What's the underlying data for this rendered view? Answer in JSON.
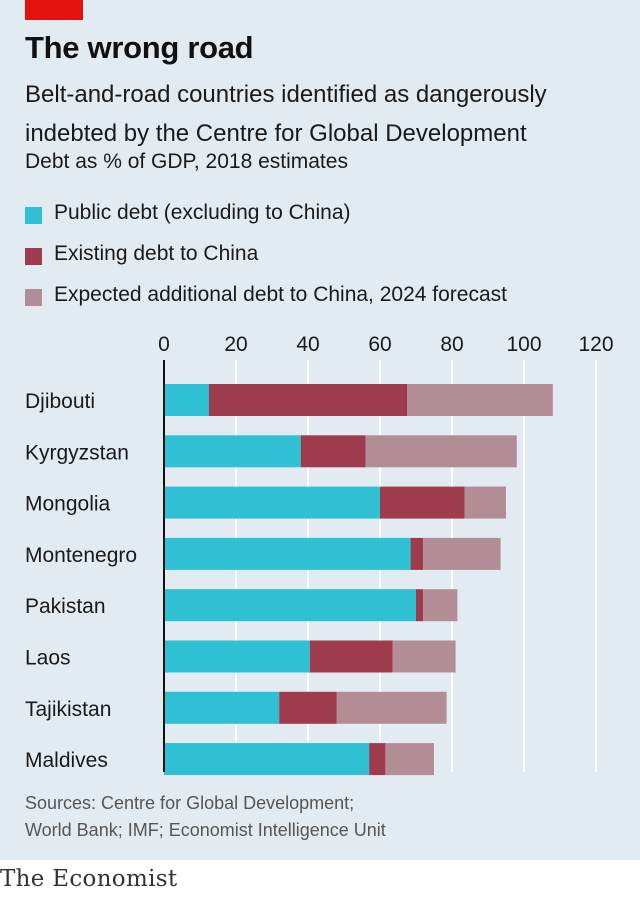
{
  "title": "The wrong road",
  "subtitle": "Belt-and-road countries identified as dangerously indebted by the Centre for Global Development",
  "unit_note": "Debt as % of GDP, 2018 estimates",
  "legend": [
    {
      "label": "Public debt (excluding to China)",
      "color": "#2fc1d3"
    },
    {
      "label": "Existing debt to China",
      "color": "#9e3b4d"
    },
    {
      "label": "Expected additional debt to China, 2024 forecast",
      "color": "#b38d96"
    }
  ],
  "source": [
    "Sources: Centre for Global Development;",
    "World Bank; IMF; Economist Intelligence Unit"
  ],
  "logo": "The Economist",
  "colors": {
    "accent_red": "#e3120b",
    "background": "#e2ebf2",
    "gridline": "#ffffff",
    "axis": "#111111"
  },
  "chart_data": {
    "type": "bar",
    "orientation": "horizontal",
    "stacked": true,
    "categories": [
      "Djibouti",
      "Kyrgyzstan",
      "Mongolia",
      "Montenegro",
      "Pakistan",
      "Laos",
      "Tajikistan",
      "Maldives"
    ],
    "series": [
      {
        "name": "Public debt (excluding to China)",
        "values": [
          12.5,
          38,
          60,
          68.5,
          70,
          40.5,
          32,
          57
        ]
      },
      {
        "name": "Existing debt to China",
        "values": [
          55,
          18,
          23.5,
          3.5,
          2,
          23,
          16,
          4.5
        ]
      },
      {
        "name": "Expected additional debt to China, 2024 forecast",
        "values": [
          40.5,
          42,
          11.5,
          21.5,
          9.5,
          17.5,
          30.5,
          13.5
        ]
      }
    ],
    "xlim": [
      0,
      120
    ],
    "xticks": [
      0,
      20,
      40,
      60,
      80,
      100,
      120
    ],
    "tick_labels": [
      "0",
      "20",
      "40",
      "60",
      "80",
      "100",
      "120"
    ],
    "grid": true,
    "legend_position": "top-left"
  }
}
